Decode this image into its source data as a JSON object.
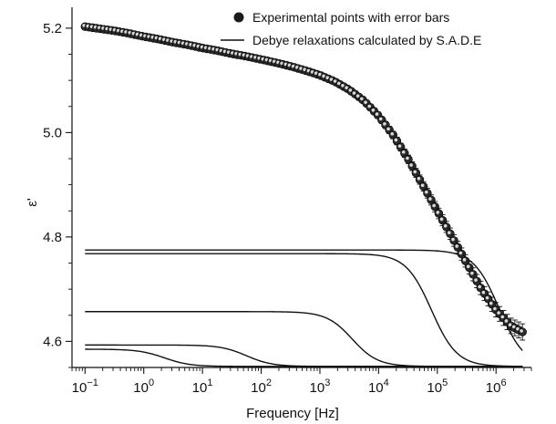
{
  "chart_data": {
    "type": "scatter",
    "title": "",
    "xlabel": "Frequency [Hz]",
    "ylabel": "ε'",
    "xscale": "log",
    "xlim": [
      0.06,
      4000000
    ],
    "ylim": [
      4.55,
      5.24
    ],
    "grid": false,
    "legend_position": "top-right",
    "x_ticks": [
      {
        "value": 0.1,
        "base": "10",
        "exp": "−1"
      },
      {
        "value": 1,
        "base": "10",
        "exp": "0"
      },
      {
        "value": 10,
        "base": "10",
        "exp": "1"
      },
      {
        "value": 100,
        "base": "10",
        "exp": "2"
      },
      {
        "value": 1000,
        "base": "10",
        "exp": "3"
      },
      {
        "value": 10000,
        "base": "10",
        "exp": "4"
      },
      {
        "value": 100000,
        "base": "10",
        "exp": "5"
      },
      {
        "value": 1000000,
        "base": "10",
        "exp": "6"
      }
    ],
    "y_ticks": [
      {
        "value": 4.6,
        "label": "4.6"
      },
      {
        "value": 4.8,
        "label": "4.8"
      },
      {
        "value": 5.0,
        "label": "5.0"
      },
      {
        "value": 5.2,
        "label": "5.2"
      }
    ],
    "series": [
      {
        "name": "Experimental points with error bars",
        "kind": "points",
        "points": [
          {
            "log_f": -1.0,
            "y": 5.203
          },
          {
            "log_f": -0.75,
            "y": 5.199
          },
          {
            "log_f": -0.5,
            "y": 5.195
          },
          {
            "log_f": -0.25,
            "y": 5.19
          },
          {
            "log_f": 0.0,
            "y": 5.184
          },
          {
            "log_f": 0.25,
            "y": 5.179
          },
          {
            "log_f": 0.5,
            "y": 5.173
          },
          {
            "log_f": 0.75,
            "y": 5.168
          },
          {
            "log_f": 1.0,
            "y": 5.162
          },
          {
            "log_f": 1.25,
            "y": 5.157
          },
          {
            "log_f": 1.5,
            "y": 5.151
          },
          {
            "log_f": 1.75,
            "y": 5.146
          },
          {
            "log_f": 2.0,
            "y": 5.14
          },
          {
            "log_f": 2.25,
            "y": 5.134
          },
          {
            "log_f": 2.5,
            "y": 5.127
          },
          {
            "log_f": 2.75,
            "y": 5.119
          },
          {
            "log_f": 3.0,
            "y": 5.11
          },
          {
            "log_f": 3.25,
            "y": 5.098
          },
          {
            "log_f": 3.5,
            "y": 5.082
          },
          {
            "log_f": 3.75,
            "y": 5.061
          },
          {
            "log_f": 4.0,
            "y": 5.032
          },
          {
            "log_f": 4.25,
            "y": 4.995
          },
          {
            "log_f": 4.5,
            "y": 4.95
          },
          {
            "log_f": 4.75,
            "y": 4.9
          },
          {
            "log_f": 5.0,
            "y": 4.85
          },
          {
            "log_f": 5.25,
            "y": 4.8
          },
          {
            "log_f": 5.5,
            "y": 4.75
          },
          {
            "log_f": 5.75,
            "y": 4.7
          },
          {
            "log_f": 6.0,
            "y": 4.66
          },
          {
            "log_f": 6.25,
            "y": 4.63
          },
          {
            "log_f": 6.45,
            "y": 4.618
          }
        ]
      },
      {
        "name": "Debye relaxations calculated by S.A.D.E",
        "kind": "curves",
        "curves": [
          {
            "eps_high": 4.552,
            "eps_low": 4.775,
            "log_f0": 6.05
          },
          {
            "eps_high": 4.552,
            "eps_low": 4.768,
            "log_f0": 4.9
          },
          {
            "eps_high": 4.552,
            "eps_low": 4.657,
            "log_f0": 3.55
          },
          {
            "eps_high": 4.552,
            "eps_low": 4.593,
            "log_f0": 1.75
          },
          {
            "eps_high": 4.552,
            "eps_low": 4.585,
            "log_f0": 0.35
          }
        ]
      }
    ]
  }
}
